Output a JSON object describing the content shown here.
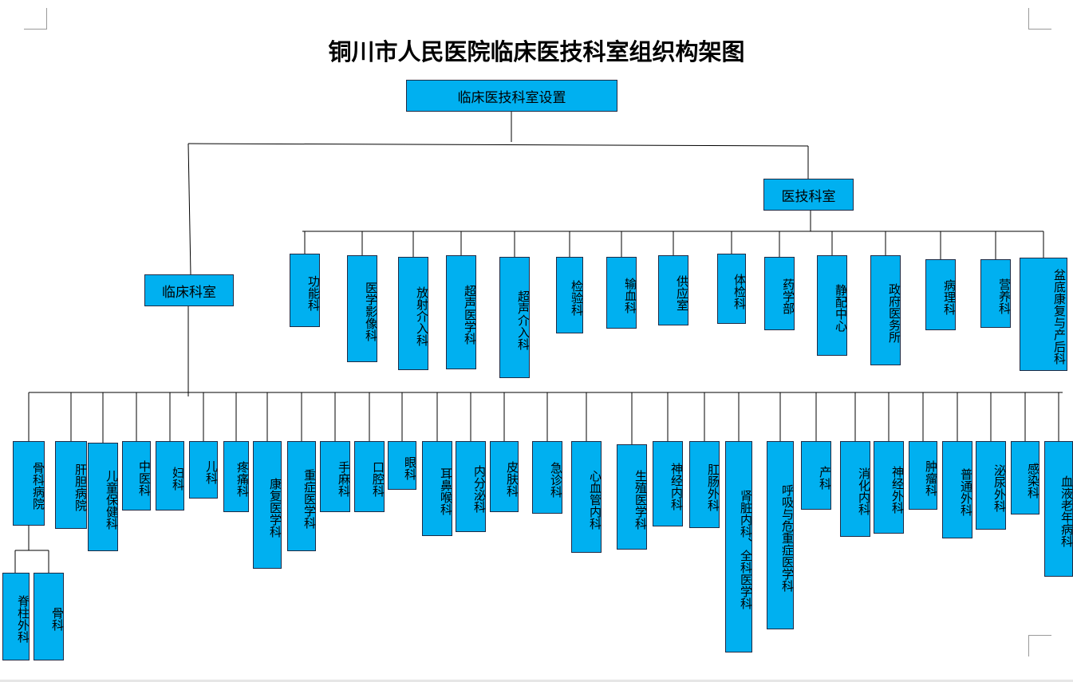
{
  "title": "铜川市人民医院临床医技科室组织构架图",
  "root": "临床医技科室设置",
  "tech_branch": {
    "label": "医技科室",
    "children": [
      "功能科",
      "医学影像科",
      "放射介入科",
      "超声医学科",
      "超声介入科",
      "检验科",
      "输血科",
      "供应室",
      "体检科",
      "药学部",
      "静配中心",
      "政府医务所",
      "病理科",
      "营养科",
      "盆底康复与产后科"
    ]
  },
  "clinical_branch": {
    "label": "临床科室",
    "children": [
      "骨科病院",
      "肝胆病院",
      "儿童保健科",
      "中医科",
      "妇科",
      "儿科",
      "疼痛科",
      "康复医学科",
      "重症医学科",
      "手麻科",
      "口腔科",
      "眼科",
      "耳鼻喉科",
      "内分泌科",
      "皮肤科",
      "急诊科",
      "心血管内科",
      "生殖医学科",
      "神经内科",
      "肛肠外科",
      "肾脏内科、全科医学科",
      "呼吸与危重症医学科",
      "产科",
      "消化内科",
      "神经外科",
      "肿瘤科",
      "普通外科",
      "泌尿外科",
      "感染科",
      "血液老年病科"
    ]
  },
  "ortho_sub": [
    "脊柱外科",
    "骨科"
  ]
}
